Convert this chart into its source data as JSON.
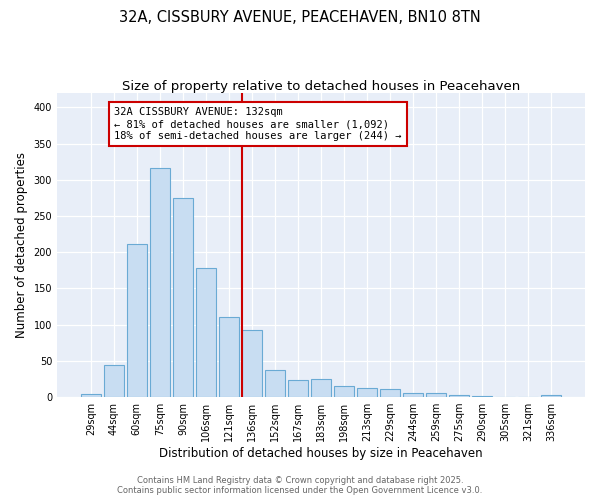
{
  "title_line1": "32A, CISSBURY AVENUE, PEACEHAVEN, BN10 8TN",
  "title_line2": "Size of property relative to detached houses in Peacehaven",
  "xlabel": "Distribution of detached houses by size in Peacehaven",
  "ylabel": "Number of detached properties",
  "bar_color": "#c8ddf2",
  "bar_edge_color": "#6aaad4",
  "categories": [
    "29sqm",
    "44sqm",
    "60sqm",
    "75sqm",
    "90sqm",
    "106sqm",
    "121sqm",
    "136sqm",
    "152sqm",
    "167sqm",
    "183sqm",
    "198sqm",
    "213sqm",
    "229sqm",
    "244sqm",
    "259sqm",
    "275sqm",
    "290sqm",
    "305sqm",
    "321sqm",
    "336sqm"
  ],
  "values": [
    4,
    44,
    211,
    317,
    275,
    178,
    110,
    92,
    38,
    24,
    25,
    15,
    13,
    11,
    5,
    5,
    3,
    2,
    0,
    0,
    3
  ],
  "vline_color": "#cc0000",
  "annotation_text": "32A CISSBURY AVENUE: 132sqm\n← 81% of detached houses are smaller (1,092)\n18% of semi-detached houses are larger (244) →",
  "annotation_box_color": "#ffffff",
  "annotation_box_edge": "#cc0000",
  "ylim": [
    0,
    420
  ],
  "yticks": [
    0,
    50,
    100,
    150,
    200,
    250,
    300,
    350,
    400
  ],
  "fig_bg_color": "#ffffff",
  "plot_bg_color": "#e8eef8",
  "grid_color": "#ffffff",
  "footer_text": "Contains HM Land Registry data © Crown copyright and database right 2025.\nContains public sector information licensed under the Open Government Licence v3.0.",
  "title_fontsize": 10.5,
  "subtitle_fontsize": 9.5,
  "tick_fontsize": 7,
  "ylabel_fontsize": 8.5,
  "xlabel_fontsize": 8.5,
  "footer_fontsize": 6,
  "annotation_fontsize": 7.5
}
